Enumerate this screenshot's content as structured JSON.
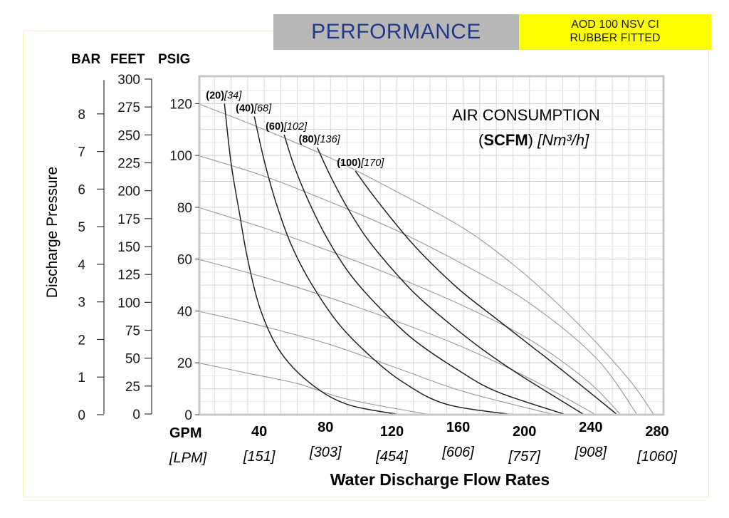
{
  "header": {
    "title": "PERFORMANCE",
    "model_line1": "AOD 100 NSV CI",
    "model_line2": "RUBBER FITTED"
  },
  "axes": {
    "bar_title": "BAR",
    "feet_title": "FEET",
    "psig_title": "PSIG",
    "y_label": "Discharge Pressure",
    "x_label": "Water Discharge Flow Rates",
    "gpm_label": "GPM",
    "lpm_label": "[LPM]"
  },
  "legend": {
    "line1": "AIR CONSUMPTION",
    "paren_open": "(",
    "scfm": "SCFM",
    "paren_close": ") ",
    "unit": "[Nm³/h]"
  },
  "chart_data": {
    "type": "line",
    "title": "PERFORMANCE",
    "xlabel": "Water Discharge Flow Rates",
    "ylabel": "Discharge Pressure",
    "x_unit": "GPM",
    "x_unit_secondary": "LPM",
    "xlim": [
      0,
      280
    ],
    "ylim": [
      0,
      130
    ],
    "x_ticks": [
      {
        "gpm": "40",
        "lpm": "[151]"
      },
      {
        "gpm": "80",
        "lpm": "[303]"
      },
      {
        "gpm": "120",
        "lpm": "[454]"
      },
      {
        "gpm": "160",
        "lpm": "[606]"
      },
      {
        "gpm": "200",
        "lpm": "[757]"
      },
      {
        "gpm": "240",
        "lpm": "[908]"
      },
      {
        "gpm": "280",
        "lpm": "[1060]"
      }
    ],
    "psig_ticks": [
      "120",
      "100",
      "80",
      "60",
      "40",
      "20",
      "0"
    ],
    "feet_ticks": [
      "300",
      "275",
      "250",
      "225",
      "200",
      "175",
      "150",
      "125",
      "100",
      "75",
      "50",
      "25",
      "0"
    ],
    "bar_ticks": [
      "8",
      "7",
      "6",
      "5",
      "4",
      "3",
      "2",
      "1",
      "0"
    ],
    "grid": true,
    "air_consumption_series": [
      {
        "scfm": "(20)",
        "nm3h": "[34]",
        "points": [
          [
            16,
            120
          ],
          [
            20,
            97
          ],
          [
            25,
            78
          ],
          [
            30,
            60
          ],
          [
            38,
            40
          ],
          [
            50,
            24
          ],
          [
            68,
            12
          ],
          [
            90,
            4
          ],
          [
            122,
            0
          ]
        ]
      },
      {
        "scfm": "(40)",
        "nm3h": "[68]",
        "points": [
          [
            34,
            115
          ],
          [
            40,
            98
          ],
          [
            47,
            82
          ],
          [
            56,
            66
          ],
          [
            68,
            51
          ],
          [
            85,
            35
          ],
          [
            105,
            22
          ],
          [
            125,
            12
          ],
          [
            150,
            4
          ],
          [
            190,
            0
          ]
        ]
      },
      {
        "scfm": "(60)",
        "nm3h": "[102]",
        "points": [
          [
            52,
            108
          ],
          [
            58,
            96
          ],
          [
            67,
            82
          ],
          [
            78,
            68
          ],
          [
            92,
            54
          ],
          [
            110,
            41
          ],
          [
            130,
            29
          ],
          [
            155,
            18
          ],
          [
            180,
            9
          ],
          [
            222,
            0
          ]
        ]
      },
      {
        "scfm": "(80)",
        "nm3h": "[136]",
        "points": [
          [
            72,
            103
          ],
          [
            80,
            92
          ],
          [
            90,
            80
          ],
          [
            102,
            68
          ],
          [
            116,
            57
          ],
          [
            132,
            46
          ],
          [
            152,
            35
          ],
          [
            172,
            25
          ],
          [
            195,
            15
          ],
          [
            233,
            0
          ]
        ]
      },
      {
        "scfm": "(100)",
        "nm3h": "[170]",
        "points": [
          [
            95,
            94
          ],
          [
            104,
            86
          ],
          [
            115,
            77
          ],
          [
            128,
            67
          ],
          [
            143,
            57
          ],
          [
            160,
            47
          ],
          [
            180,
            37
          ],
          [
            200,
            27
          ],
          [
            222,
            16
          ],
          [
            253,
            0
          ]
        ]
      }
    ],
    "pressure_curves": [
      {
        "points": [
          [
            0,
            20
          ],
          [
            30,
            16
          ],
          [
            60,
            12
          ],
          [
            90,
            6
          ],
          [
            140,
            0
          ]
        ]
      },
      {
        "points": [
          [
            0,
            40
          ],
          [
            40,
            34
          ],
          [
            80,
            27
          ],
          [
            120,
            18
          ],
          [
            160,
            9
          ],
          [
            215,
            0
          ]
        ]
      },
      {
        "points": [
          [
            0,
            60
          ],
          [
            40,
            53
          ],
          [
            80,
            45
          ],
          [
            120,
            36
          ],
          [
            160,
            26
          ],
          [
            200,
            14
          ],
          [
            240,
            0
          ]
        ]
      },
      {
        "points": [
          [
            0,
            80
          ],
          [
            40,
            72
          ],
          [
            80,
            63
          ],
          [
            120,
            53
          ],
          [
            160,
            42
          ],
          [
            200,
            29
          ],
          [
            235,
            13
          ],
          [
            255,
            0
          ]
        ]
      },
      {
        "points": [
          [
            0,
            100
          ],
          [
            40,
            92
          ],
          [
            80,
            82
          ],
          [
            120,
            71
          ],
          [
            160,
            58
          ],
          [
            200,
            43
          ],
          [
            240,
            22
          ],
          [
            265,
            0
          ]
        ]
      },
      {
        "points": [
          [
            0,
            120
          ],
          [
            40,
            110
          ],
          [
            80,
            99
          ],
          [
            120,
            86
          ],
          [
            160,
            72
          ],
          [
            190,
            58
          ],
          [
            215,
            44
          ],
          [
            240,
            28
          ],
          [
            262,
            12
          ],
          [
            275,
            0
          ]
        ]
      }
    ]
  }
}
